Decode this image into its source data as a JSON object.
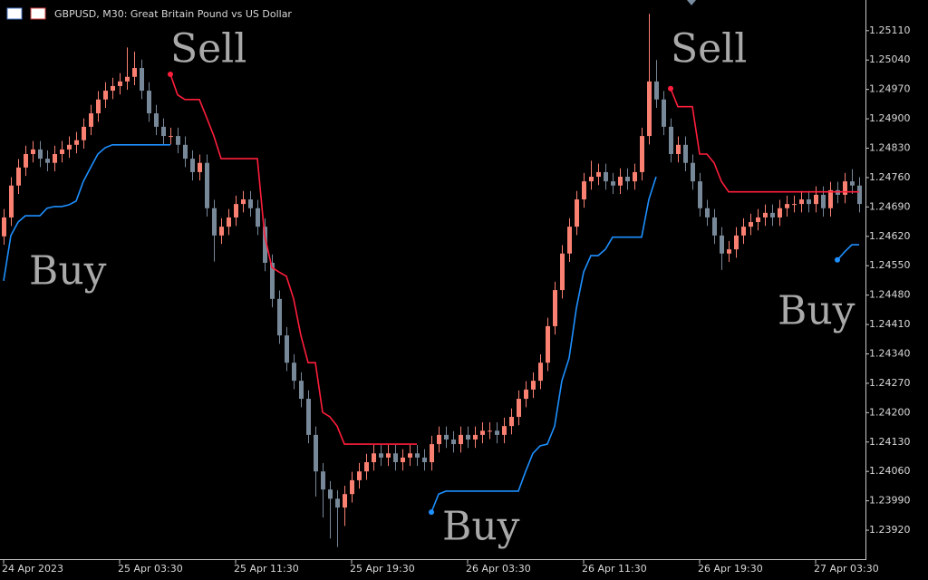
{
  "chart_data": {
    "type": "candlestick",
    "title": "GBPUSD, M30:  Great Britain Pound vs US Dollar",
    "up_color": "#fa8072",
    "down_color": "#778899",
    "xlim": [
      -0.5,
      118.875
    ],
    "xticks": [
      {
        "value": 0,
        "label": "24 Apr 2023"
      },
      {
        "value": 16,
        "label": "25 Apr 03:30"
      },
      {
        "value": 32,
        "label": "25 Apr 11:30"
      },
      {
        "value": 48,
        "label": "25 Apr 19:30"
      },
      {
        "value": 64,
        "label": "26 Apr 03:30"
      },
      {
        "value": 80,
        "label": "26 Apr 11:30"
      },
      {
        "value": 96,
        "label": "26 Apr 19:30"
      },
      {
        "value": 112,
        "label": "27 Apr 03:30"
      }
    ],
    "ylim": [
      1.23851,
      1.25183
    ],
    "yticks": [
      {
        "value": 1.2511,
        "label": "1.25110"
      },
      {
        "value": 1.2504,
        "label": "1.25040"
      },
      {
        "value": 1.2497,
        "label": "1.24970"
      },
      {
        "value": 1.249,
        "label": "1.24900"
      },
      {
        "value": 1.2483,
        "label": "1.24830"
      },
      {
        "value": 1.2476,
        "label": "1.24760"
      },
      {
        "value": 1.2469,
        "label": "1.24690"
      },
      {
        "value": 1.2462,
        "label": "1.24620"
      },
      {
        "value": 1.2455,
        "label": "1.24550"
      },
      {
        "value": 1.2448,
        "label": "1.24480"
      },
      {
        "value": 1.2441,
        "label": "1.24410"
      },
      {
        "value": 1.2434,
        "label": "1.24340"
      },
      {
        "value": 1.2427,
        "label": "1.24270"
      },
      {
        "value": 1.242,
        "label": "1.24200"
      },
      {
        "value": 1.2413,
        "label": "1.24130"
      },
      {
        "value": 1.2406,
        "label": "1.24060"
      },
      {
        "value": 1.2399,
        "label": "1.23990"
      },
      {
        "value": 1.2392,
        "label": "1.23920"
      }
    ],
    "candles": [
      [
        1.2462,
        1.24685,
        1.246,
        1.24665
      ],
      [
        1.24665,
        1.24761,
        1.24645,
        1.24741
      ],
      [
        1.24741,
        1.24804,
        1.24721,
        1.24784
      ],
      [
        1.24784,
        1.24836,
        1.24764,
        1.24816
      ],
      [
        1.24816,
        1.24847,
        1.24796,
        1.24827
      ],
      [
        1.24827,
        1.24847,
        1.24785,
        1.24805
      ],
      [
        1.24805,
        1.24825,
        1.24775,
        1.24795
      ],
      [
        1.24795,
        1.24836,
        1.24775,
        1.24816
      ],
      [
        1.24816,
        1.24847,
        1.24796,
        1.24827
      ],
      [
        1.24827,
        1.24858,
        1.24807,
        1.24838
      ],
      [
        1.24838,
        1.24869,
        1.24818,
        1.24849
      ],
      [
        1.24849,
        1.24901,
        1.24829,
        1.24881
      ],
      [
        1.24881,
        1.24933,
        1.24861,
        1.24913
      ],
      [
        1.24913,
        1.24966,
        1.24893,
        1.24946
      ],
      [
        1.24946,
        1.24987,
        1.24926,
        1.24967
      ],
      [
        1.24967,
        1.24998,
        1.24947,
        1.24978
      ],
      [
        1.24978,
        1.25009,
        1.24958,
        1.24989
      ],
      [
        1.24989,
        1.2507,
        1.24969,
        1.25
      ],
      [
        1.25,
        1.2506,
        1.2498,
        1.25021
      ],
      [
        1.25021,
        1.25041,
        1.24947,
        1.24967
      ],
      [
        1.24967,
        1.24987,
        1.24893,
        1.24913
      ],
      [
        1.24913,
        1.24933,
        1.24861,
        1.24881
      ],
      [
        1.24881,
        1.24901,
        1.24839,
        1.24859
      ],
      [
        1.24859,
        1.24879,
        1.24839,
        1.24859
      ],
      [
        1.24859,
        1.24879,
        1.24818,
        1.24838
      ],
      [
        1.24838,
        1.24858,
        1.24785,
        1.24805
      ],
      [
        1.24805,
        1.24825,
        1.24753,
        1.24773
      ],
      [
        1.24773,
        1.24815,
        1.24753,
        1.24795
      ],
      [
        1.24795,
        1.24815,
        1.24667,
        1.24687
      ],
      [
        1.24687,
        1.24707,
        1.2456,
        1.24622
      ],
      [
        1.24622,
        1.24663,
        1.24602,
        1.24643
      ],
      [
        1.24643,
        1.24685,
        1.24623,
        1.24665
      ],
      [
        1.24665,
        1.24717,
        1.24645,
        1.24697
      ],
      [
        1.24697,
        1.24728,
        1.24677,
        1.24708
      ],
      [
        1.24708,
        1.24728,
        1.24667,
        1.24687
      ],
      [
        1.24687,
        1.24707,
        1.24623,
        1.24643
      ],
      [
        1.24643,
        1.24663,
        1.24537,
        1.24557
      ],
      [
        1.24557,
        1.24577,
        1.24451,
        1.24471
      ],
      [
        1.24471,
        1.24491,
        1.24364,
        1.24384
      ],
      [
        1.24384,
        1.24404,
        1.24299,
        1.24319
      ],
      [
        1.24319,
        1.24339,
        1.24256,
        1.24276
      ],
      [
        1.24276,
        1.24296,
        1.24213,
        1.24233
      ],
      [
        1.24233,
        1.24253,
        1.24127,
        1.24147
      ],
      [
        1.24147,
        1.24167,
        1.24,
        1.2406
      ],
      [
        1.2406,
        1.2408,
        1.2395,
        1.24017
      ],
      [
        1.24017,
        1.24037,
        1.239,
        1.23995
      ],
      [
        1.23995,
        1.24015,
        1.2388,
        1.23974
      ],
      [
        1.23974,
        1.24026,
        1.2393,
        1.24006
      ],
      [
        1.24006,
        1.24059,
        1.23986,
        1.24039
      ],
      [
        1.24039,
        1.2408,
        1.24019,
        1.2406
      ],
      [
        1.2406,
        1.24102,
        1.2404,
        1.24082
      ],
      [
        1.24082,
        1.24123,
        1.24062,
        1.24103
      ],
      [
        1.24103,
        1.24123,
        1.24073,
        1.24093
      ],
      [
        1.24093,
        1.24123,
        1.24073,
        1.24103
      ],
      [
        1.24103,
        1.24123,
        1.24062,
        1.24082
      ],
      [
        1.24082,
        1.24113,
        1.24062,
        1.24093
      ],
      [
        1.24093,
        1.24123,
        1.24073,
        1.24103
      ],
      [
        1.24103,
        1.24123,
        1.24073,
        1.24093
      ],
      [
        1.24093,
        1.24113,
        1.24062,
        1.24082
      ],
      [
        1.24082,
        1.24145,
        1.24062,
        1.24125
      ],
      [
        1.24125,
        1.24167,
        1.24105,
        1.24147
      ],
      [
        1.24147,
        1.24167,
        1.24116,
        1.24136
      ],
      [
        1.24136,
        1.24156,
        1.24105,
        1.24125
      ],
      [
        1.24125,
        1.24167,
        1.24105,
        1.24147
      ],
      [
        1.24147,
        1.24167,
        1.24116,
        1.24136
      ],
      [
        1.24136,
        1.24167,
        1.24116,
        1.24147
      ],
      [
        1.24147,
        1.24177,
        1.24127,
        1.24157
      ],
      [
        1.24157,
        1.24177,
        1.24137,
        1.24157
      ],
      [
        1.24157,
        1.24177,
        1.24127,
        1.24147
      ],
      [
        1.24147,
        1.24188,
        1.24127,
        1.24168
      ],
      [
        1.24168,
        1.2421,
        1.24148,
        1.2419
      ],
      [
        1.2419,
        1.24253,
        1.2417,
        1.24233
      ],
      [
        1.24233,
        1.24275,
        1.24213,
        1.24255
      ],
      [
        1.24255,
        1.24296,
        1.24235,
        1.24276
      ],
      [
        1.24276,
        1.24339,
        1.24256,
        1.24319
      ],
      [
        1.24319,
        1.24426,
        1.24299,
        1.24406
      ],
      [
        1.24406,
        1.24512,
        1.24386,
        1.24492
      ],
      [
        1.24492,
        1.24599,
        1.24472,
        1.24579
      ],
      [
        1.24579,
        1.24663,
        1.24559,
        1.24643
      ],
      [
        1.24643,
        1.24728,
        1.24623,
        1.24708
      ],
      [
        1.24708,
        1.24771,
        1.24688,
        1.24751
      ],
      [
        1.24751,
        1.248,
        1.24731,
        1.24762
      ],
      [
        1.24762,
        1.24793,
        1.24742,
        1.24773
      ],
      [
        1.24773,
        1.24793,
        1.24731,
        1.24751
      ],
      [
        1.24751,
        1.24771,
        1.24721,
        1.24741
      ],
      [
        1.24741,
        1.24782,
        1.24721,
        1.24762
      ],
      [
        1.24762,
        1.24782,
        1.24731,
        1.24751
      ],
      [
        1.24751,
        1.24793,
        1.24731,
        1.24773
      ],
      [
        1.24773,
        1.24879,
        1.24753,
        1.24859
      ],
      [
        1.24859,
        1.2515,
        1.24839,
        1.24989
      ],
      [
        1.24989,
        1.2504,
        1.24926,
        1.24946
      ],
      [
        1.24946,
        1.24966,
        1.24861,
        1.24881
      ],
      [
        1.24881,
        1.24901,
        1.24796,
        1.24816
      ],
      [
        1.24816,
        1.24858,
        1.24796,
        1.24838
      ],
      [
        1.24838,
        1.24858,
        1.24775,
        1.24795
      ],
      [
        1.24795,
        1.24815,
        1.24731,
        1.24751
      ],
      [
        1.24751,
        1.24771,
        1.24667,
        1.24687
      ],
      [
        1.24687,
        1.24707,
        1.24645,
        1.24665
      ],
      [
        1.24665,
        1.24685,
        1.24602,
        1.24622
      ],
      [
        1.24622,
        1.24642,
        1.2454,
        1.24579
      ],
      [
        1.24579,
        1.24609,
        1.24559,
        1.24589
      ],
      [
        1.24589,
        1.24642,
        1.24569,
        1.24622
      ],
      [
        1.24622,
        1.24663,
        1.24602,
        1.24643
      ],
      [
        1.24643,
        1.24674,
        1.24623,
        1.24654
      ],
      [
        1.24654,
        1.24685,
        1.24634,
        1.24665
      ],
      [
        1.24665,
        1.24696,
        1.24645,
        1.24676
      ],
      [
        1.24676,
        1.24696,
        1.24645,
        1.24665
      ],
      [
        1.24665,
        1.24707,
        1.24645,
        1.24687
      ],
      [
        1.24687,
        1.24717,
        1.24667,
        1.24697
      ],
      [
        1.24697,
        1.24717,
        1.24677,
        1.24697
      ],
      [
        1.24697,
        1.24728,
        1.24677,
        1.24708
      ],
      [
        1.24708,
        1.24728,
        1.24677,
        1.24697
      ],
      [
        1.24697,
        1.24739,
        1.24677,
        1.24719
      ],
      [
        1.24719,
        1.24739,
        1.24667,
        1.24687
      ],
      [
        1.24687,
        1.2475,
        1.24667,
        1.2473
      ],
      [
        1.2473,
        1.2475,
        1.24699,
        1.24719
      ],
      [
        1.24719,
        1.24771,
        1.24699,
        1.24751
      ],
      [
        1.24751,
        1.2478,
        1.24721,
        1.24741
      ],
      [
        1.24741,
        1.24761,
        1.24677,
        1.24697
      ]
    ],
    "lines": [
      {
        "color": "#1e90ff",
        "values": [
          1.24514,
          1.24622,
          1.24654,
          1.24669,
          1.24669,
          1.24669,
          1.24687,
          1.24691,
          1.24691,
          1.24695,
          1.24704,
          1.24751,
          1.24784,
          1.24816,
          1.24831,
          1.24838,
          1.24838,
          1.24838,
          1.24838,
          1.24838,
          1.24838,
          1.24838,
          1.24838,
          1.24838,
          null,
          null,
          null,
          null,
          null,
          null,
          null,
          null,
          null,
          null,
          null,
          null,
          null,
          null,
          null,
          null,
          null,
          null,
          null,
          null,
          null,
          null,
          null,
          null,
          null,
          null,
          null,
          null,
          null,
          null,
          null,
          null,
          null,
          null,
          null,
          1.23963,
          1.24006,
          1.24013,
          1.24013,
          1.24013,
          1.24013,
          1.24013,
          1.24013,
          1.24013,
          1.24013,
          1.24013,
          1.24013,
          1.24013,
          1.2406,
          1.24103,
          1.24121,
          1.24125,
          1.24168,
          1.24276,
          1.2433,
          1.24449,
          1.24535,
          1.24574,
          1.24574,
          1.24589,
          1.24618,
          1.24618,
          1.24618,
          1.24618,
          1.24618,
          1.24708,
          1.24762,
          null,
          null,
          null,
          null,
          null,
          null,
          null,
          null,
          null,
          null,
          null,
          null,
          null,
          null,
          null,
          null,
          null,
          null,
          null,
          null,
          null,
          null,
          null,
          null,
          1.24564,
          1.24583,
          1.246,
          1.246
        ]
      },
      {
        "color": "#ff1e3c",
        "values": [
          null,
          null,
          null,
          null,
          null,
          null,
          null,
          null,
          null,
          null,
          null,
          null,
          null,
          null,
          null,
          null,
          null,
          null,
          null,
          null,
          null,
          null,
          null,
          1.25006,
          1.24957,
          1.24946,
          1.24946,
          1.24946,
          1.24903,
          1.24859,
          1.24805,
          1.24805,
          1.24805,
          1.24805,
          1.24805,
          1.24805,
          1.24622,
          1.24546,
          1.24535,
          1.24525,
          1.24471,
          1.24384,
          1.24319,
          1.24319,
          1.24201,
          1.2419,
          1.24168,
          1.24125,
          1.24125,
          1.24125,
          1.24125,
          1.24125,
          1.24125,
          1.24125,
          1.24125,
          1.24125,
          1.24125,
          1.24125,
          null,
          null,
          null,
          null,
          null,
          null,
          null,
          null,
          null,
          null,
          null,
          null,
          null,
          null,
          null,
          null,
          null,
          null,
          null,
          null,
          null,
          null,
          null,
          null,
          null,
          null,
          null,
          null,
          null,
          null,
          null,
          null,
          null,
          null,
          1.24972,
          1.24929,
          1.24929,
          1.24929,
          1.24816,
          1.24816,
          1.24795,
          1.24751,
          1.24726,
          1.24726,
          1.24726,
          1.24726,
          1.24726,
          1.24726,
          1.24726,
          1.24726,
          1.24726,
          1.24726,
          1.24726,
          1.24726,
          1.24726,
          1.24726,
          1.24726,
          1.24726,
          1.24726,
          1.24726,
          1.24726
        ]
      }
    ],
    "annotations": [
      "Sell",
      "Sell",
      "Buy",
      "Buy",
      "Buy"
    ]
  }
}
